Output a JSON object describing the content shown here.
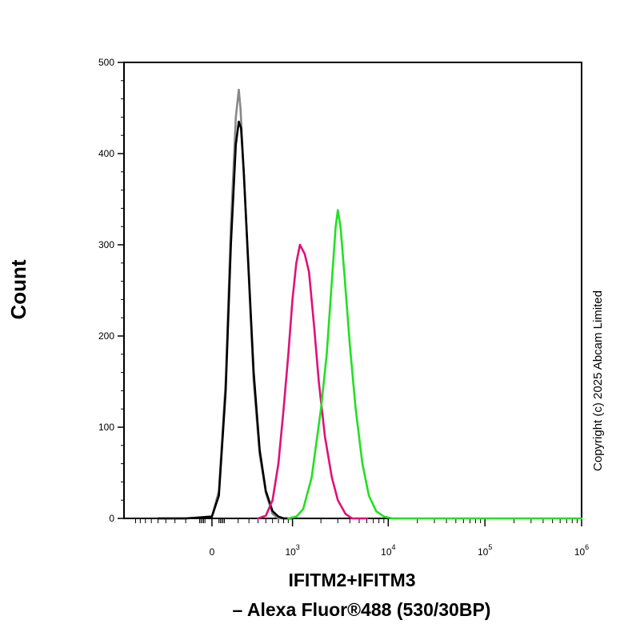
{
  "chart_data": {
    "type": "line",
    "ylabel": "Count",
    "xlabel_line1": "IFITM2+IFITM3",
    "xlabel_line2": "– Alexa Fluor®488 (530/30BP)",
    "copyright": "Copyright (c) 2025 Abcam Limited",
    "ylim": [
      0,
      500
    ],
    "yticks": [
      0,
      100,
      200,
      300,
      400,
      500
    ],
    "xscale": "biexponential",
    "xticks": [
      {
        "value": 0,
        "base": "0",
        "exp": ""
      },
      {
        "value": 1000,
        "base": "10",
        "exp": "3"
      },
      {
        "value": 10000,
        "base": "10",
        "exp": "4"
      },
      {
        "value": 100000,
        "base": "10",
        "exp": "5"
      },
      {
        "value": 1000000,
        "base": "10",
        "exp": "6"
      }
    ],
    "grid": false,
    "series": [
      {
        "color": "#888888",
        "points": [
          [
            -500,
            0
          ],
          [
            -200,
            0
          ],
          [
            0,
            2
          ],
          [
            50,
            30
          ],
          [
            100,
            150
          ],
          [
            140,
            320
          ],
          [
            180,
            440
          ],
          [
            205,
            470
          ],
          [
            220,
            450
          ],
          [
            250,
            380
          ],
          [
            300,
            260
          ],
          [
            350,
            150
          ],
          [
            420,
            70
          ],
          [
            500,
            28
          ],
          [
            600,
            5
          ],
          [
            700,
            0
          ],
          [
            1000,
            0
          ]
        ]
      },
      {
        "color": "#000000",
        "points": [
          [
            -500,
            0
          ],
          [
            -200,
            0
          ],
          [
            0,
            2
          ],
          [
            50,
            25
          ],
          [
            100,
            140
          ],
          [
            140,
            300
          ],
          [
            180,
            410
          ],
          [
            205,
            435
          ],
          [
            225,
            428
          ],
          [
            250,
            380
          ],
          [
            300,
            265
          ],
          [
            350,
            160
          ],
          [
            420,
            75
          ],
          [
            500,
            30
          ],
          [
            600,
            8
          ],
          [
            700,
            2
          ],
          [
            800,
            0
          ],
          [
            1000,
            0
          ]
        ]
      },
      {
        "color": "#e0107a",
        "points": [
          [
            400,
            0
          ],
          [
            500,
            3
          ],
          [
            600,
            20
          ],
          [
            700,
            60
          ],
          [
            800,
            120
          ],
          [
            900,
            180
          ],
          [
            1000,
            240
          ],
          [
            1100,
            280
          ],
          [
            1200,
            300
          ],
          [
            1350,
            290
          ],
          [
            1500,
            270
          ],
          [
            1700,
            210
          ],
          [
            1900,
            150
          ],
          [
            2200,
            90
          ],
          [
            2600,
            45
          ],
          [
            3000,
            20
          ],
          [
            3600,
            5
          ],
          [
            4200,
            0
          ],
          [
            6000,
            0
          ]
        ]
      },
      {
        "color": "#22e022",
        "points": [
          [
            900,
            0
          ],
          [
            1100,
            2
          ],
          [
            1300,
            10
          ],
          [
            1600,
            45
          ],
          [
            2000,
            120
          ],
          [
            2300,
            180
          ],
          [
            2600,
            260
          ],
          [
            2850,
            320
          ],
          [
            3000,
            338
          ],
          [
            3200,
            320
          ],
          [
            3500,
            270
          ],
          [
            4000,
            190
          ],
          [
            4600,
            120
          ],
          [
            5400,
            60
          ],
          [
            6300,
            25
          ],
          [
            7500,
            8
          ],
          [
            9000,
            2
          ],
          [
            11000,
            0
          ],
          [
            40000,
            0
          ],
          [
            1000000,
            0
          ]
        ]
      }
    ]
  }
}
